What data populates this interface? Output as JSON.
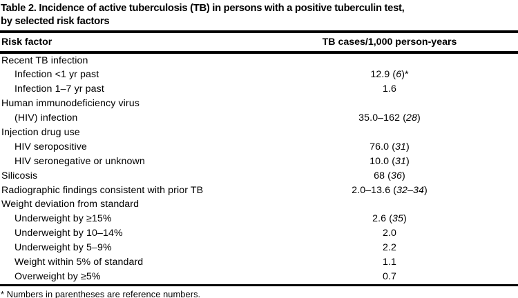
{
  "colors": {
    "text": "#000000",
    "background": "#ffffff"
  },
  "title": {
    "line1": "Table 2. Incidence of active tuberculosis (TB) in persons with a positive tuberculin test,",
    "line2": "by selected risk factors"
  },
  "table": {
    "columns": [
      "Risk factor",
      "TB cases/1,000 person-years"
    ],
    "rows": [
      {
        "label": "Recent TB infection",
        "value_pre": "",
        "ref": "",
        "value_post": ""
      },
      {
        "label": "Infection <1 yr past",
        "value_pre": "12.9 (",
        "ref": "6",
        "value_post": ")*"
      },
      {
        "label": "Infection 1–7 yr past",
        "value_pre": "1.6",
        "ref": "",
        "value_post": ""
      },
      {
        "label": "Human immunodeficiency virus",
        "value_pre": "",
        "ref": "",
        "value_post": ""
      },
      {
        "label": "(HIV) infection",
        "value_pre": "35.0–162 (",
        "ref": "28",
        "value_post": ")"
      },
      {
        "label": "Injection drug use",
        "value_pre": "",
        "ref": "",
        "value_post": ""
      },
      {
        "label": "HIV seropositive",
        "value_pre": "76.0 (",
        "ref": "31",
        "value_post": ")"
      },
      {
        "label": "HIV seronegative or unknown",
        "value_pre": "10.0 (",
        "ref": "31",
        "value_post": ")"
      },
      {
        "label": "Silicosis",
        "value_pre": "68 (",
        "ref": "36",
        "value_post": ")"
      },
      {
        "label": "Radiographic findings consistent with prior TB",
        "value_pre": "2.0–13.6 (",
        "ref": "32–34",
        "value_post": ")"
      },
      {
        "label": "Weight deviation from standard",
        "value_pre": "",
        "ref": "",
        "value_post": ""
      },
      {
        "label": "Underweight by ≥15%",
        "value_pre": "2.6 (",
        "ref": "35",
        "value_post": ")"
      },
      {
        "label": "Underweight by 10–14%",
        "value_pre": "2.0",
        "ref": "",
        "value_post": ""
      },
      {
        "label": "Underweight by 5–9%",
        "value_pre": "2.2",
        "ref": "",
        "value_post": ""
      },
      {
        "label": "Weight within 5% of standard",
        "value_pre": "1.1",
        "ref": "",
        "value_post": ""
      },
      {
        "label": "Overweight by ≥5%",
        "value_pre": "0.7",
        "ref": "",
        "value_post": ""
      }
    ]
  },
  "footnote": "* Numbers in parentheses are reference numbers."
}
